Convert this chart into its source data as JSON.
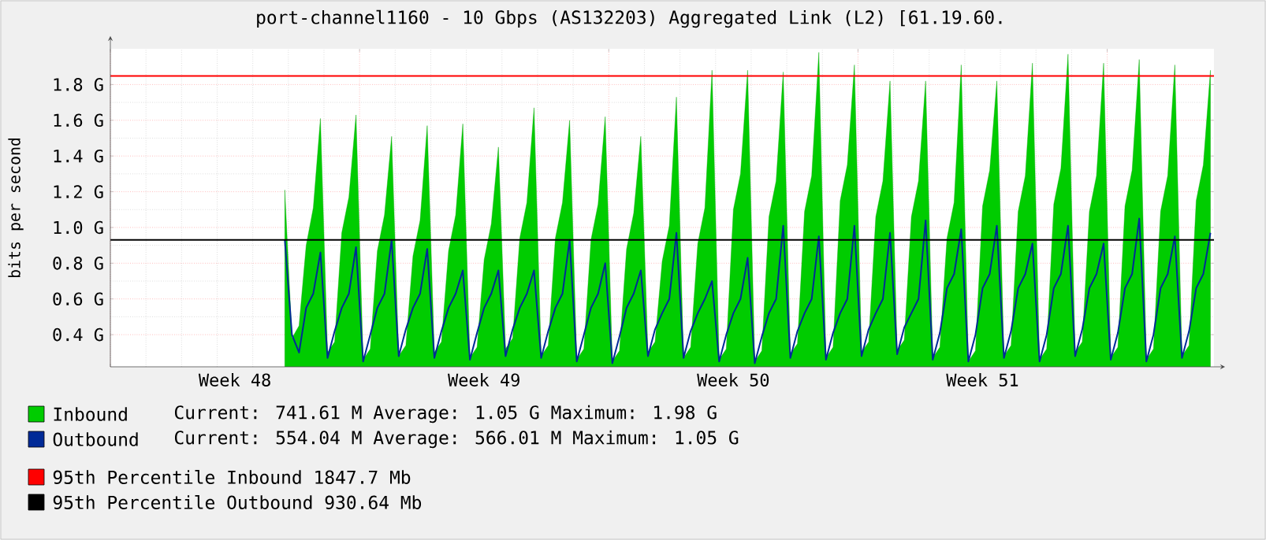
{
  "chart_data": {
    "type": "area",
    "title": "port-channel1160 - 10 Gbps (AS132203) Aggregated Link (L2) [61.19.60.",
    "ylabel": "bits per second",
    "categories": [
      null,
      null,
      null,
      null,
      null,
      null,
      null,
      null,
      null,
      null,
      null,
      null,
      null,
      null,
      null,
      null,
      null,
      "Week 48",
      null,
      null,
      null,
      null,
      null,
      null,
      null,
      null,
      null,
      null,
      null,
      null,
      null,
      null,
      null,
      null,
      null,
      null,
      null,
      null,
      null,
      null,
      null,
      null,
      null,
      null,
      null,
      null,
      null,
      null,
      null,
      null,
      null,
      null,
      "Week 49",
      null,
      null,
      null,
      null,
      null,
      null,
      null,
      null,
      null,
      null,
      null,
      null,
      null,
      null,
      null,
      null,
      null,
      null,
      null,
      null,
      null,
      null,
      null,
      null,
      null,
      null,
      null,
      null,
      null,
      null,
      null,
      null,
      null,
      null,
      "Week 50",
      null,
      null,
      null,
      null,
      null,
      null,
      null,
      null,
      null,
      null,
      null,
      null,
      null,
      null,
      null,
      null,
      null,
      null,
      null,
      null,
      null,
      null,
      null,
      null,
      null,
      null,
      null,
      null,
      null,
      null,
      null,
      null,
      null,
      null,
      "Week 51",
      null,
      null,
      null,
      null,
      null,
      null,
      null,
      null,
      null,
      null,
      null,
      null,
      null,
      null,
      null,
      null,
      null,
      null,
      null,
      null,
      null,
      null,
      null,
      null,
      null,
      null,
      null,
      null,
      null,
      null,
      null,
      null
    ],
    "ylim": [
      0.22,
      2.0
    ],
    "yticks": [
      {
        "value": 0.4,
        "label": "0.4 G"
      },
      {
        "value": 0.6,
        "label": "0.6 G"
      },
      {
        "value": 0.8,
        "label": "0.8 G"
      },
      {
        "value": 1.0,
        "label": "1.0 G"
      },
      {
        "value": 1.2,
        "label": "1.2 G"
      },
      {
        "value": 1.4,
        "label": "1.4 G"
      },
      {
        "value": 1.6,
        "label": "1.6 G"
      },
      {
        "value": 1.8,
        "label": "1.8 G"
      }
    ],
    "grid": true,
    "legend": "bottom",
    "marker": "none",
    "series": [
      {
        "name": "Inbound",
        "color": "#00cc00",
        "values": [
          null,
          null,
          null,
          null,
          null,
          null,
          null,
          null,
          null,
          null,
          null,
          null,
          null,
          null,
          null,
          null,
          null,
          null,
          null,
          null,
          null,
          null,
          null,
          null,
          1.21,
          0.38,
          0.45,
          0.9,
          1.11,
          1.61,
          0.3,
          0.36,
          0.97,
          1.17,
          1.63,
          0.26,
          0.32,
          0.87,
          1.07,
          1.51,
          0.28,
          0.34,
          0.84,
          1.04,
          1.57,
          0.3,
          0.36,
          0.87,
          1.07,
          1.58,
          0.27,
          0.33,
          0.82,
          1.02,
          1.45,
          0.32,
          0.38,
          0.94,
          1.14,
          1.67,
          0.28,
          0.34,
          0.94,
          1.14,
          1.6,
          0.26,
          0.32,
          0.93,
          1.13,
          1.62,
          0.25,
          0.31,
          0.88,
          1.08,
          1.51,
          0.3,
          0.36,
          0.81,
          1.01,
          1.73,
          0.27,
          0.33,
          0.91,
          1.11,
          1.88,
          0.26,
          0.32,
          1.1,
          1.3,
          1.88,
          0.25,
          0.31,
          1.06,
          1.26,
          1.87,
          0.29,
          0.35,
          1.09,
          1.29,
          1.98,
          0.27,
          0.33,
          1.15,
          1.35,
          1.91,
          0.3,
          0.36,
          1.06,
          1.26,
          1.82,
          0.31,
          0.37,
          1.06,
          1.26,
          1.82,
          0.27,
          0.33,
          0.94,
          1.14,
          1.91,
          0.25,
          0.31,
          1.12,
          1.32,
          1.82,
          0.28,
          0.34,
          1.09,
          1.29,
          1.92,
          0.26,
          0.32,
          1.13,
          1.33,
          1.97,
          0.3,
          0.36,
          1.09,
          1.29,
          1.92,
          0.27,
          0.33,
          1.12,
          1.32,
          1.94,
          0.26,
          0.32,
          1.09,
          1.29,
          1.91,
          0.28,
          0.34,
          1.15,
          1.35,
          1.88
        ]
      },
      {
        "name": "Outbound",
        "type": "line",
        "color": "#002a97",
        "line_style": "solid",
        "values": [
          null,
          null,
          null,
          null,
          null,
          null,
          null,
          null,
          null,
          null,
          null,
          null,
          null,
          null,
          null,
          null,
          null,
          null,
          null,
          null,
          null,
          null,
          null,
          null,
          0.93,
          0.4,
          0.3,
          0.55,
          0.63,
          0.86,
          0.27,
          0.42,
          0.55,
          0.63,
          0.89,
          0.25,
          0.4,
          0.55,
          0.63,
          0.93,
          0.28,
          0.43,
          0.55,
          0.63,
          0.88,
          0.27,
          0.42,
          0.55,
          0.63,
          0.76,
          0.26,
          0.41,
          0.55,
          0.63,
          0.76,
          0.28,
          0.43,
          0.55,
          0.63,
          0.76,
          0.27,
          0.42,
          0.55,
          0.63,
          0.93,
          0.25,
          0.4,
          0.55,
          0.63,
          0.8,
          0.24,
          0.39,
          0.55,
          0.63,
          0.76,
          0.28,
          0.43,
          0.52,
          0.6,
          0.97,
          0.27,
          0.42,
          0.52,
          0.6,
          0.7,
          0.25,
          0.4,
          0.52,
          0.6,
          0.83,
          0.24,
          0.39,
          0.52,
          0.6,
          1.01,
          0.27,
          0.42,
          0.52,
          0.6,
          0.95,
          0.26,
          0.41,
          0.52,
          0.6,
          1.01,
          0.28,
          0.43,
          0.52,
          0.6,
          0.97,
          0.29,
          0.44,
          0.52,
          0.6,
          1.04,
          0.26,
          0.41,
          0.66,
          0.74,
          0.99,
          0.25,
          0.4,
          0.66,
          0.74,
          1.01,
          0.27,
          0.42,
          0.66,
          0.74,
          0.91,
          0.25,
          0.4,
          0.66,
          0.74,
          1.01,
          0.28,
          0.43,
          0.66,
          0.74,
          0.91,
          0.26,
          0.41,
          0.66,
          0.74,
          1.05,
          0.25,
          0.4,
          0.66,
          0.74,
          0.95,
          0.27,
          0.42,
          0.66,
          0.74,
          0.97
        ]
      }
    ],
    "ref_lines": [
      {
        "axis": "y",
        "value": 1.8477,
        "color": "#ff0000",
        "label": "95th Percentile Inbound  1847.7 Mb"
      },
      {
        "axis": "y",
        "value": 0.93064,
        "color": "#000000",
        "label": "95th Percentile Outbound  930.64 Mb"
      }
    ],
    "annotations": [
      "Current:  741.61 M   Average:     1.05 G   Maximum:    1.98 G",
      "Current:  554.04 M   Average:  566.01 M   Maximum:    1.05 G"
    ]
  }
}
